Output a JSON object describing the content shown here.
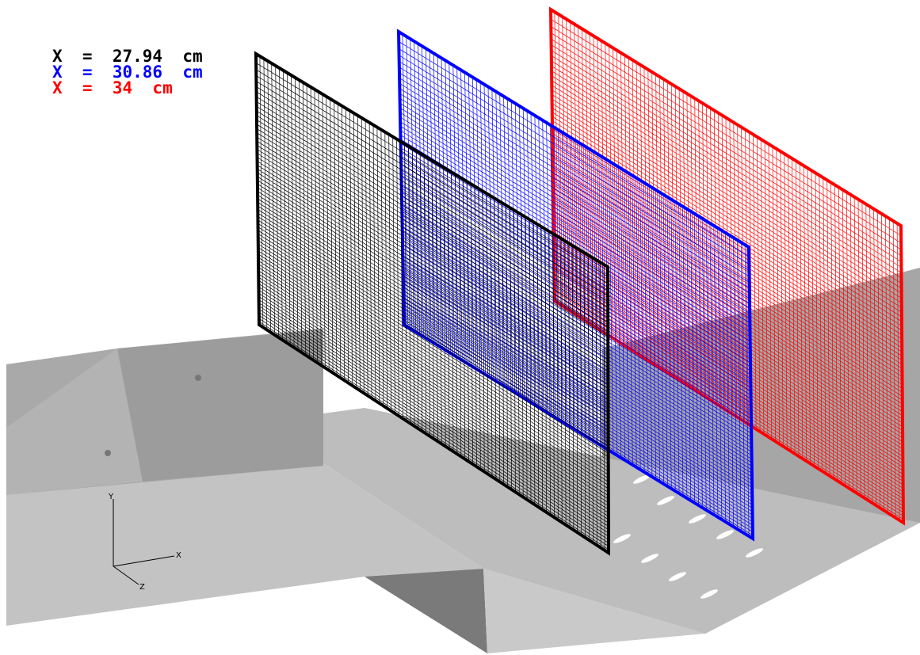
{
  "legend": [
    {
      "label": "X  =  27.94  cm",
      "color": "#000000"
    },
    {
      "label": "X  =  30.86  cm",
      "color": "#0000ff"
    },
    {
      "label": "X  =  34  cm",
      "color": "#ff0000"
    }
  ],
  "axes": {
    "y": "Y",
    "x": "X",
    "z": "Z"
  }
}
